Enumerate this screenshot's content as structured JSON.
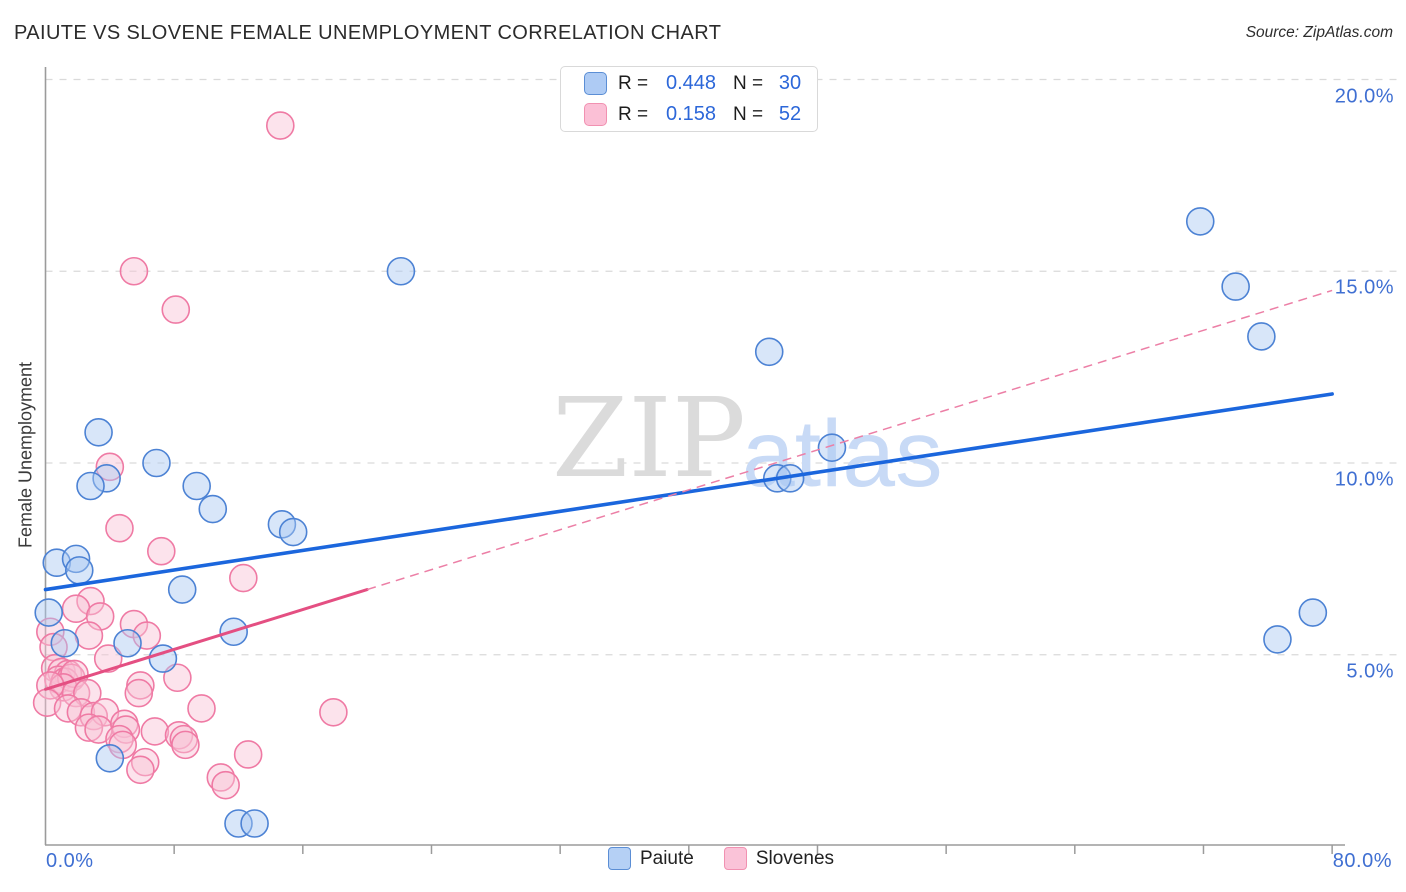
{
  "header": {
    "title": "PAIUTE VS SLOVENE FEMALE UNEMPLOYMENT CORRELATION CHART",
    "source": "Source: ZipAtlas.com"
  },
  "legend_box": {
    "r_label": "R =",
    "n_label": "N =",
    "entries": [
      {
        "series": "Paiute",
        "r": "0.448",
        "n": "30",
        "fill": "#aecbf4",
        "stroke": "#5b8ed5"
      },
      {
        "series": "Slovenes",
        "r": "0.158",
        "n": "52",
        "fill": "#fbc0d6",
        "stroke": "#f191b1"
      }
    ]
  },
  "axes": {
    "y_label": "Female Unemployment",
    "x_start": "0.0%",
    "x_end": "80.0%",
    "y_tick_labels": [
      {
        "value": 20,
        "label": "20.0%"
      },
      {
        "value": 15,
        "label": "15.0%"
      },
      {
        "value": 10,
        "label": "10.0%"
      },
      {
        "value": 5,
        "label": "5.0%"
      }
    ]
  },
  "watermark": {
    "zip": "ZIP",
    "atlas": "atlas"
  },
  "bottom_legend": [
    {
      "label": "Paiute",
      "fill": "#b5d0f5",
      "stroke": "#5b8ed5"
    },
    {
      "label": "Slovenes",
      "fill": "#fac3d8",
      "stroke": "#f191b1"
    }
  ],
  "chart_data": {
    "type": "scatter",
    "title": "PAIUTE VS SLOVENE FEMALE UNEMPLOYMENT CORRELATION CHART",
    "xlabel": "",
    "ylabel": "Female Unemployment",
    "xlim": [
      0,
      80
    ],
    "ylim": [
      0,
      20.3
    ],
    "x_tick_interval": 8,
    "y_gridlines": [
      5,
      10,
      15,
      20
    ],
    "grid": "dashed-horizontal",
    "legend_position": "bottom-center",
    "series": [
      {
        "name": "Paiute",
        "R": 0.448,
        "N": 30,
        "marker_fill": "#a9c8f2",
        "marker_stroke": "#4c82d4",
        "points": [
          [
            0.2,
            6.1
          ],
          [
            1.2,
            5.3
          ],
          [
            5.1,
            5.3
          ],
          [
            7.3,
            4.9
          ],
          [
            11.7,
            5.6
          ],
          [
            4.0,
            2.3
          ],
          [
            12.0,
            0.6
          ],
          [
            13.0,
            0.6
          ],
          [
            3.3,
            10.8
          ],
          [
            3.8,
            9.6
          ],
          [
            2.8,
            9.4
          ],
          [
            6.9,
            10.0
          ],
          [
            9.4,
            9.4
          ],
          [
            10.4,
            8.8
          ],
          [
            0.7,
            7.4
          ],
          [
            1.9,
            7.5
          ],
          [
            2.1,
            7.2
          ],
          [
            14.7,
            8.4
          ],
          [
            15.4,
            8.2
          ],
          [
            8.5,
            6.7
          ],
          [
            22.1,
            15.0
          ],
          [
            45.0,
            12.9
          ],
          [
            45.5,
            9.6
          ],
          [
            46.3,
            9.6
          ],
          [
            48.9,
            10.4
          ],
          [
            71.8,
            16.3
          ],
          [
            74.0,
            14.6
          ],
          [
            75.6,
            13.3
          ],
          [
            78.8,
            6.1
          ],
          [
            76.6,
            5.4
          ]
        ]
      },
      {
        "name": "Slovenes",
        "R": 0.158,
        "N": 52,
        "marker_fill": "#f9c2d4",
        "marker_stroke": "#ef7aa4",
        "points": [
          [
            14.6,
            18.8
          ],
          [
            5.5,
            15.0
          ],
          [
            8.1,
            14.0
          ],
          [
            4.0,
            9.9
          ],
          [
            4.6,
            8.3
          ],
          [
            7.2,
            7.7
          ],
          [
            12.3,
            7.0
          ],
          [
            2.8,
            6.4
          ],
          [
            1.9,
            6.2
          ],
          [
            3.4,
            6.0
          ],
          [
            5.5,
            5.8
          ],
          [
            0.3,
            5.6
          ],
          [
            2.7,
            5.5
          ],
          [
            6.3,
            5.5
          ],
          [
            0.5,
            5.2
          ],
          [
            3.9,
            4.9
          ],
          [
            8.2,
            4.4
          ],
          [
            5.9,
            4.2
          ],
          [
            5.8,
            4.0
          ],
          [
            9.7,
            3.6
          ],
          [
            17.9,
            3.5
          ],
          [
            0.6,
            4.65
          ],
          [
            1.0,
            4.55
          ],
          [
            1.4,
            4.5
          ],
          [
            0.8,
            4.35
          ],
          [
            1.2,
            4.3
          ],
          [
            1.6,
            4.4
          ],
          [
            1.8,
            4.5
          ],
          [
            1.1,
            4.15
          ],
          [
            0.3,
            4.2
          ],
          [
            1.9,
            4.0
          ],
          [
            2.6,
            4.0
          ],
          [
            0.1,
            3.75
          ],
          [
            1.4,
            3.6
          ],
          [
            2.2,
            3.5
          ],
          [
            3.0,
            3.4
          ],
          [
            3.7,
            3.5
          ],
          [
            2.7,
            3.1
          ],
          [
            3.3,
            3.05
          ],
          [
            4.9,
            3.2
          ],
          [
            5.0,
            3.05
          ],
          [
            6.8,
            3.0
          ],
          [
            8.3,
            2.9
          ],
          [
            8.6,
            2.8
          ],
          [
            8.7,
            2.65
          ],
          [
            4.6,
            2.8
          ],
          [
            4.8,
            2.65
          ],
          [
            6.2,
            2.2
          ],
          [
            12.6,
            2.4
          ],
          [
            10.9,
            1.8
          ],
          [
            11.2,
            1.6
          ],
          [
            5.9,
            2.0
          ]
        ]
      }
    ],
    "trend_lines": [
      {
        "series": "Paiute",
        "x0": 0,
        "y0": 6.7,
        "x1": 80,
        "y1": 11.8,
        "color": "#1b66dd",
        "width": 3.6,
        "solid_until_x": 80
      },
      {
        "series": "Slovenes",
        "x0": 0,
        "y0": 4.1,
        "x1": 80,
        "y1": 14.5,
        "color": "#e44f82",
        "width": 3.0,
        "solid_until_x": 20,
        "dash_color": "#ec7fa6",
        "dash_width": 1.5
      }
    ]
  }
}
